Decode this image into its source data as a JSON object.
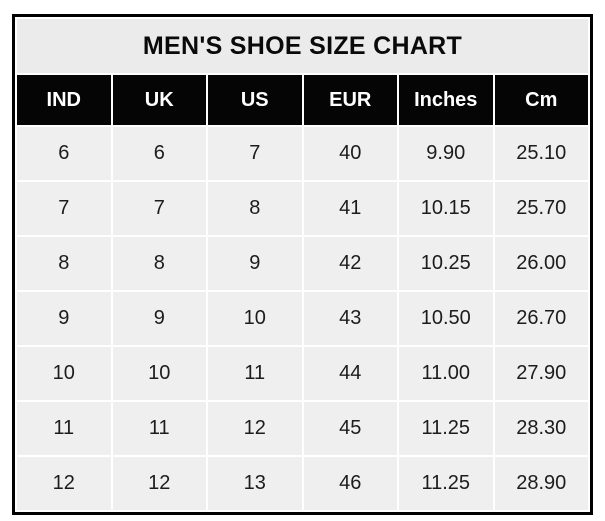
{
  "chart_data": {
    "type": "table",
    "title": "MEN'S SHOE SIZE CHART",
    "columns": [
      "IND",
      "UK",
      "US",
      "EUR",
      "Inches",
      "Cm"
    ],
    "rows": [
      [
        "6",
        "6",
        "7",
        "40",
        "9.90",
        "25.10"
      ],
      [
        "7",
        "7",
        "8",
        "41",
        "10.15",
        "25.70"
      ],
      [
        "8",
        "8",
        "9",
        "42",
        "10.25",
        "26.00"
      ],
      [
        "9",
        "9",
        "10",
        "43",
        "10.50",
        "26.70"
      ],
      [
        "10",
        "10",
        "11",
        "44",
        "11.00",
        "27.90"
      ],
      [
        "11",
        "11",
        "12",
        "45",
        "11.25",
        "28.30"
      ],
      [
        "12",
        "12",
        "13",
        "46",
        "11.25",
        "28.90"
      ]
    ],
    "layout": {
      "columns_equal_width": true,
      "title_row_merged": true
    }
  },
  "colors": {
    "title_bg": "#ebebeb",
    "header_bg": "#050505",
    "header_text": "#ffffff",
    "cell_bg": "#efefef",
    "cell_text": "#1c1c1c",
    "outer_border": "#000000",
    "cell_gap": "#ffffff",
    "page_bg": "#ffffff"
  }
}
